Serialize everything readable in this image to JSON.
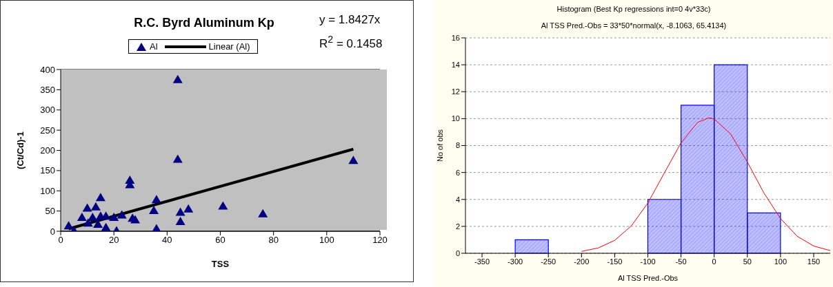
{
  "chart_data": [
    {
      "type": "scatter",
      "title": "R.C. Byrd Aluminum Kp",
      "xlabel": "TSS",
      "ylabel": "(Ct/Cd)-1",
      "annotations": [
        "y = 1.8427x",
        "R$^{2}$ = 0.1458"
      ],
      "xlim": [
        0,
        120
      ],
      "xticks": [
        0,
        20,
        40,
        60,
        80,
        100,
        120
      ],
      "ylim": [
        0,
        400
      ],
      "yticks": [
        0,
        50,
        100,
        150,
        200,
        250,
        300,
        350,
        400
      ],
      "grid": "y",
      "legend": "top",
      "series": [
        {
          "name": "Al",
          "type": "scatter",
          "marker": "triangle",
          "color": "#000080",
          "x": [
            3,
            5,
            8,
            10,
            10.3,
            12,
            13.2,
            14,
            15,
            15,
            17,
            17,
            20,
            21,
            23,
            26,
            26,
            27,
            28,
            35,
            36,
            36,
            44,
            44,
            45,
            45,
            48,
            61,
            76,
            110
          ],
          "values": [
            13,
            1,
            34,
            57,
            20,
            34,
            60,
            17,
            83,
            37,
            37,
            9,
            34,
            1,
            40,
            126,
            115,
            32,
            28,
            51,
            78,
            6,
            178,
            375,
            47,
            24,
            55,
            62,
            43,
            175
          ]
        },
        {
          "name": "Linear (Al)",
          "type": "line",
          "color": "#000000",
          "x": [
            3,
            110
          ],
          "values": [
            6,
            203
          ]
        }
      ]
    },
    {
      "type": "histogram",
      "title": "Histogram (Best Kp regressions int=0 4v*33c)",
      "subtitle": "Al TSS Pred.-Obs = 33*50*normal(x, -8.1063, 65.4134)",
      "xlabel": "Al TSS Pred.-Obs",
      "ylabel": "No of obs",
      "xlim": [
        -375,
        175
      ],
      "xticks": [
        -350,
        -300,
        -250,
        -200,
        -150,
        -100,
        -50,
        0,
        50,
        100,
        150
      ],
      "ylim": [
        0,
        16
      ],
      "yticks": [
        0,
        2,
        4,
        6,
        8,
        10,
        12,
        14,
        16
      ],
      "grid": "y",
      "legend": false,
      "bins": [
        -300,
        -250,
        -200,
        -150,
        -100,
        -50,
        0,
        50,
        100
      ],
      "series": [
        {
          "type": "histogram",
          "color": "#0000ff",
          "values": [
            1,
            null,
            null,
            null,
            4,
            11,
            14,
            3
          ]
        },
        {
          "type": "line",
          "color": "#ff0000",
          "x": [
            -200,
            -175,
            -150,
            -125,
            -100,
            -75,
            -50,
            -25,
            -8,
            0,
            25,
            50,
            75,
            100,
            125,
            150,
            175
          ],
          "values": [
            0.14,
            0.39,
            0.96,
            2.03,
            3.73,
            5.98,
            8.2,
            9.72,
            10.06,
            9.98,
            8.85,
            6.78,
            4.48,
            2.58,
            1.27,
            0.54,
            0.2
          ]
        }
      ]
    }
  ]
}
